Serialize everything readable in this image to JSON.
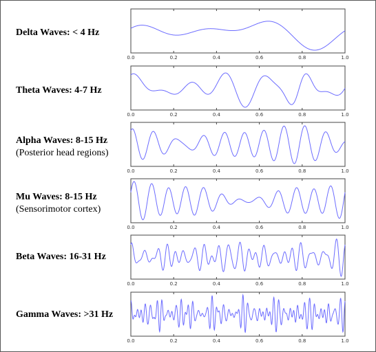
{
  "panels": [
    {
      "name": "Delta Waves: < 4 Hz",
      "sub": ""
    },
    {
      "name": "Theta Waves: 4-7 Hz",
      "sub": ""
    },
    {
      "name": "Alpha Waves: 8-15 Hz",
      "sub": "(Posterior head regions)"
    },
    {
      "name": "Mu Waves: 8-15 Hz",
      "sub": "(Sensorimotor cortex)"
    },
    {
      "name": "Beta Waves: 16-31 Hz",
      "sub": ""
    },
    {
      "name": "Gamma Waves: >31 Hz",
      "sub": ""
    }
  ],
  "colors": {
    "wave": "#6b6bff",
    "axes": "#444444",
    "border": "#555555"
  },
  "chart_data": [
    {
      "type": "line",
      "title": "Delta Waves: < 4 Hz",
      "xlim": [
        0,
        1
      ],
      "x_ticks": [
        "0.0",
        "0.2",
        "0.4",
        "0.6",
        "0.8",
        "1.0"
      ],
      "series": [
        {
          "components": [
            [
              2,
              0.55,
              0.3
            ],
            [
              1,
              0.55,
              4.9
            ],
            [
              3,
              0.45,
              1.2
            ],
            [
              0.6,
              0.25,
              2.4
            ]
          ]
        }
      ]
    },
    {
      "type": "line",
      "title": "Theta Waves: 4-7 Hz",
      "xlim": [
        0,
        1
      ],
      "x_ticks": [
        "0.0",
        "0.2",
        "0.4",
        "0.6",
        "0.8",
        "1.0"
      ],
      "series": [
        {
          "components": [
            [
              5,
              0.3,
              0.4
            ],
            [
              6.5,
              0.28,
              1.9
            ],
            [
              3,
              0.2,
              0.8
            ]
          ],
          "burst": {
            "center": 0.78,
            "width": 0.08,
            "freq": 6,
            "amp": 0.9,
            "phase": 1.6
          }
        }
      ]
    },
    {
      "type": "line",
      "title": "Alpha Waves: 8-15 Hz",
      "xlim": [
        0,
        1
      ],
      "x_ticks": [
        "0.0",
        "0.2",
        "0.4",
        "0.6",
        "0.8",
        "1.0"
      ],
      "series": [
        {
          "components": [
            [
              10,
              0.5,
              0.3
            ],
            [
              11.2,
              0.45,
              1.5
            ],
            [
              8.5,
              0.2,
              2.2
            ]
          ]
        }
      ]
    },
    {
      "type": "line",
      "title": "Mu Waves: 8-15 Hz",
      "xlim": [
        0,
        1
      ],
      "x_ticks": [
        "0.0",
        "0.2",
        "0.4",
        "0.6",
        "0.8",
        "1.0"
      ],
      "series": [
        {
          "components": [
            [
              12,
              0.6,
              0.5
            ],
            [
              13,
              0.38,
              0.2
            ],
            [
              9,
              0.15,
              1.0
            ]
          ]
        }
      ]
    },
    {
      "type": "line",
      "title": "Beta Waves: 16-31 Hz",
      "xlim": [
        0,
        1
      ],
      "x_ticks": [
        "0.0",
        "0.2",
        "0.4",
        "0.6",
        "0.8",
        "1.0"
      ],
      "series": [
        {
          "components": [
            [
              18,
              0.35,
              0.2
            ],
            [
              24,
              0.3,
              1.1
            ],
            [
              29,
              0.25,
              2.0
            ],
            [
              20,
              0.2,
              0.7
            ]
          ]
        }
      ]
    },
    {
      "type": "line",
      "title": "Gamma Waves: >31 Hz",
      "xlim": [
        0,
        1
      ],
      "x_ticks": [
        "0.0",
        "0.2",
        "0.4",
        "0.6",
        "0.8",
        "1.0"
      ],
      "series": [
        {
          "components": [
            [
              35,
              0.3,
              0.1
            ],
            [
              42,
              0.28,
              1.4
            ],
            [
              55,
              0.22,
              2.5
            ],
            [
              48,
              0.18,
              0.9
            ],
            [
              63,
              0.12,
              1.7
            ]
          ]
        }
      ]
    }
  ]
}
